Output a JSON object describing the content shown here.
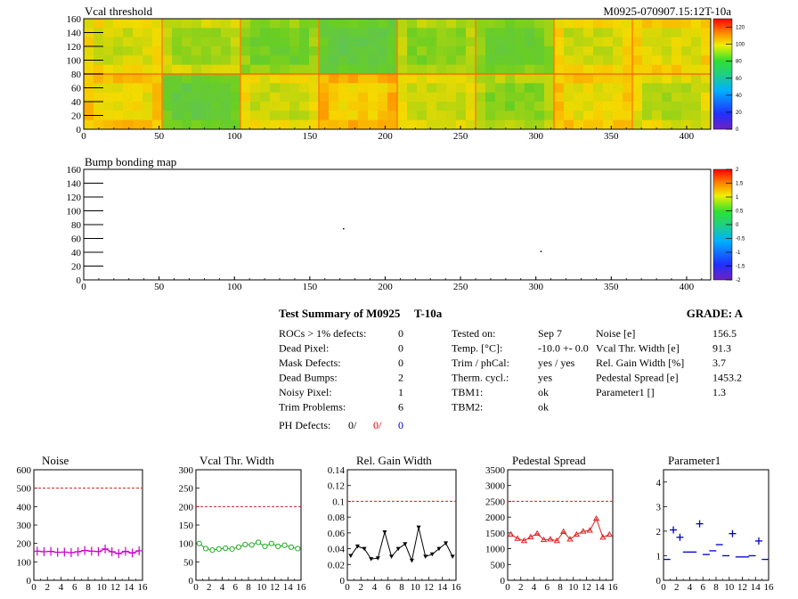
{
  "module_id": "M0925-070907.15:12T-10a",
  "summary": {
    "title": "Test Summary of M0925",
    "temp_tag": "T-10a",
    "grade": "GRADE:  A",
    "col1": [
      {
        "label": "ROCs > 1% defects:",
        "value": "0"
      },
      {
        "label": "Dead Pixel:",
        "value": "0"
      },
      {
        "label": "Mask Defects:",
        "value": "0"
      },
      {
        "label": "Dead Bumps:",
        "value": "2"
      },
      {
        "label": "Noisy Pixel:",
        "value": "1"
      },
      {
        "label": "Trim Problems:",
        "value": "6"
      }
    ],
    "ph_defects": {
      "label": "PH Defects:",
      "v1": "0/",
      "v2": "0/",
      "v3": "0"
    },
    "col2": [
      {
        "label": "Tested on:",
        "value": "Sep 7"
      },
      {
        "label": "Temp. [°C]:",
        "value": "-10.0 +- 0.0"
      },
      {
        "label": "Trim / phCal:",
        "value": "yes / yes"
      },
      {
        "label": "Therm. cycl.:",
        "value": "yes"
      },
      {
        "label": "TBM1:",
        "value": "ok"
      },
      {
        "label": "TBM2:",
        "value": "ok"
      }
    ],
    "col3": [
      {
        "label": "Noise [e]",
        "value": "156.5"
      },
      {
        "label": "Vcal Thr. Width [e]",
        "value": "91.3"
      },
      {
        "label": "Rel. Gain Width [%]",
        "value": "3.7"
      },
      {
        "label": "Pedestal Spread [e]",
        "value": "1453.2"
      },
      {
        "label": "Parameter1 []",
        "value": "1.3"
      }
    ]
  },
  "chart_data": [
    {
      "type": "heatmap",
      "title": "Vcal threshold",
      "x_ticks": [
        "0",
        "50",
        "100",
        "150",
        "200",
        "250",
        "300",
        "350",
        "400"
      ],
      "y_ticks": [
        "0",
        "20",
        "40",
        "60",
        "80",
        "100",
        "120",
        "140",
        "160"
      ],
      "xlim": [
        0,
        416
      ],
      "ylim": [
        0,
        160
      ],
      "z_ticks": [
        "0",
        "20",
        "40",
        "60",
        "80",
        "100",
        "120"
      ],
      "zlim": [
        0,
        130
      ],
      "roc_levels_top": [
        93,
        88,
        80,
        72,
        84,
        78,
        93,
        95
      ],
      "roc_levels_bottom": [
        98,
        74,
        92,
        101,
        92,
        84,
        97,
        90
      ]
    },
    {
      "type": "heatmap",
      "title": "Bump bonding map",
      "x_ticks": [
        "0",
        "50",
        "100",
        "150",
        "200",
        "250",
        "300",
        "350",
        "400"
      ],
      "y_ticks": [
        "0",
        "20",
        "40",
        "60",
        "80",
        "100",
        "120",
        "140",
        "160"
      ],
      "xlim": [
        0,
        416
      ],
      "ylim": [
        0,
        160
      ],
      "z_ticks": [
        "-2",
        "-1.5",
        "-1",
        "-0.5",
        "0",
        "0.5",
        "1",
        "1.5",
        "2"
      ],
      "zlim": [
        -2,
        2
      ],
      "dead_bumps": [
        [
          172,
          75
        ],
        [
          303,
          42
        ]
      ]
    },
    {
      "type": "line",
      "title": "Noise",
      "x": [
        0,
        1,
        2,
        3,
        4,
        5,
        6,
        7,
        8,
        9,
        10,
        11,
        12,
        13,
        14,
        15
      ],
      "values": [
        158,
        155,
        157,
        152,
        153,
        150,
        155,
        162,
        158,
        156,
        170,
        155,
        145,
        157,
        148,
        160
      ],
      "ylim": [
        0,
        600
      ],
      "y_ticks": [
        0,
        100,
        200,
        300,
        400,
        500,
        600
      ],
      "reference": 500,
      "color": "#cc00cc",
      "marker": "plus"
    },
    {
      "type": "line",
      "title": "Vcal Thr. Width",
      "x": [
        0,
        1,
        2,
        3,
        4,
        5,
        6,
        7,
        8,
        9,
        10,
        11,
        12,
        13,
        14,
        15
      ],
      "values": [
        100,
        86,
        82,
        85,
        87,
        85,
        90,
        97,
        96,
        103,
        92,
        100,
        92,
        95,
        90,
        86
      ],
      "ylim": [
        0,
        300
      ],
      "y_ticks": [
        0,
        50,
        100,
        150,
        200,
        250,
        300
      ],
      "reference": 200,
      "color": "#22aa22",
      "marker": "circle"
    },
    {
      "type": "line",
      "title": "Rel. Gain Width",
      "x": [
        0,
        1,
        2,
        3,
        4,
        5,
        6,
        7,
        8,
        9,
        10,
        11,
        12,
        13,
        14,
        15
      ],
      "values": [
        0.031,
        0.043,
        0.04,
        0.027,
        0.028,
        0.061,
        0.03,
        0.04,
        0.046,
        0.025,
        0.067,
        0.03,
        0.033,
        0.04,
        0.047,
        0.03
      ],
      "ylim": [
        0,
        0.14
      ],
      "y_ticks": [
        0,
        0.02,
        0.04,
        0.06,
        0.08,
        0.1,
        0.12,
        0.14
      ],
      "reference": 0.1,
      "color": "#000000",
      "marker": "triangle-down"
    },
    {
      "type": "line",
      "title": "Pedestal Spread",
      "x": [
        0,
        1,
        2,
        3,
        4,
        5,
        6,
        7,
        8,
        9,
        10,
        11,
        12,
        13,
        14,
        15
      ],
      "values": [
        1450,
        1320,
        1250,
        1370,
        1480,
        1280,
        1300,
        1250,
        1540,
        1300,
        1450,
        1550,
        1580,
        1950,
        1360,
        1450
      ],
      "ylim": [
        0,
        3500
      ],
      "y_ticks": [
        0,
        500,
        1000,
        1500,
        2000,
        2500,
        3000,
        3500
      ],
      "reference": 2500,
      "color": "#dd2222",
      "marker": "triangle-up"
    },
    {
      "type": "scatter",
      "title": "Parameter1",
      "x": [
        0,
        1,
        2,
        3,
        4,
        5,
        6,
        7,
        8,
        9,
        10,
        11,
        12,
        13,
        14,
        15
      ],
      "values": [
        0.85,
        2.05,
        1.75,
        1.15,
        1.15,
        2.3,
        1.05,
        1.2,
        1.45,
        1.0,
        1.9,
        0.95,
        0.95,
        1.0,
        1.6,
        0.85
      ],
      "ylim": [
        0,
        4.5
      ],
      "y_ticks": [
        0,
        1,
        2,
        3,
        4
      ],
      "reference": null,
      "color": "#0000cc",
      "marker": "hbar"
    }
  ],
  "shared": {
    "x_ticks": [
      "0",
      "2",
      "4",
      "6",
      "8",
      "10",
      "12",
      "14",
      "16"
    ],
    "ref_color": "#cc2222"
  }
}
